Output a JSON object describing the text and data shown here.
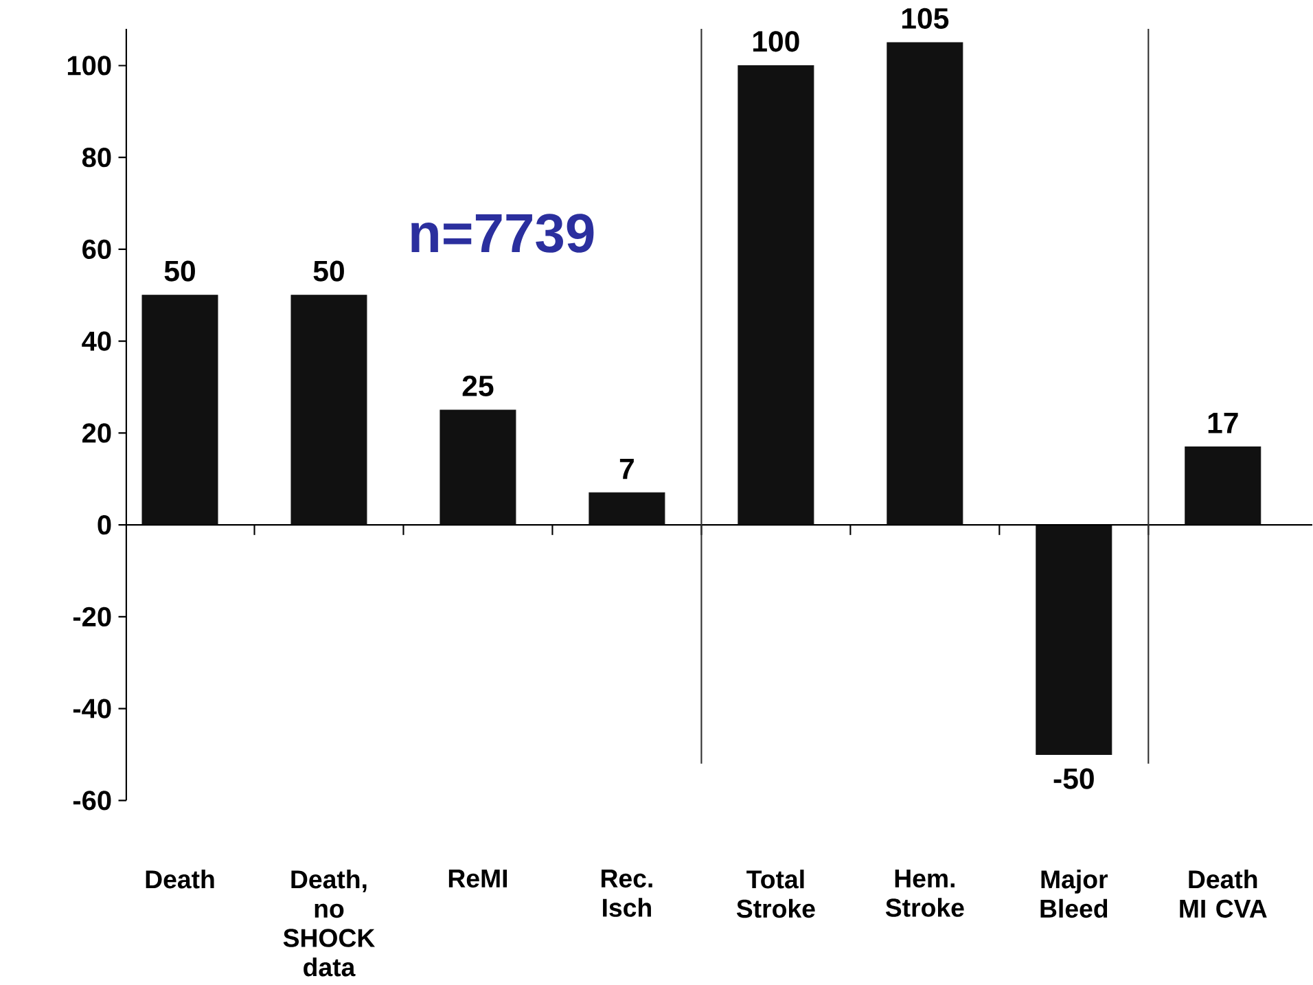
{
  "chart_data": {
    "type": "bar",
    "categories": [
      "Death",
      "Death, no SHOCK data",
      "ReMI",
      "Rec. Isch",
      "Total Stroke",
      "Hem. Stroke",
      "Major Bleed",
      "Death MI CVA"
    ],
    "values": [
      50,
      50,
      25,
      7,
      100,
      105,
      -50,
      17
    ],
    "color": "#111111",
    "ylim": [
      -60,
      108
    ],
    "yticks": [
      -60,
      -40,
      -20,
      0,
      20,
      40,
      60,
      80,
      100
    ],
    "data_labels": true,
    "annotations": [
      "n=7739"
    ]
  }
}
